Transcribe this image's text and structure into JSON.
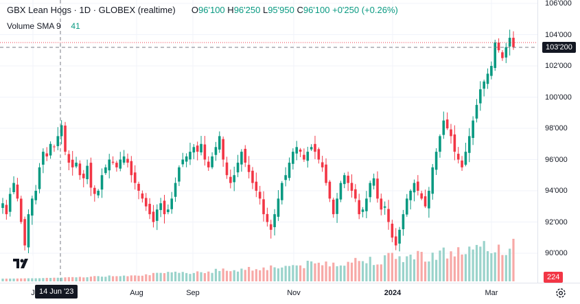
{
  "legend": {
    "symbol": "GBX Lean Hogs · 1D · GLOBEX (realtime)",
    "ohlc": [
      {
        "key": "O",
        "value": "96'100"
      },
      {
        "key": "H",
        "value": "96'250"
      },
      {
        "key": "L",
        "value": "95'950"
      },
      {
        "key": "C",
        "value": "96'100"
      }
    ],
    "change": "+0'250 (+0.26%)",
    "volume_label": "Volume SMA 9",
    "volume_value": "41"
  },
  "colors": {
    "up": "#089981",
    "down": "#f23645",
    "up_vol": "#9ad3cb",
    "down_vol": "#f7a9a7",
    "crosshair": "#787b86",
    "grid": "#f0f3fa"
  },
  "price_scale": {
    "ticks": [
      "106'000",
      "104'000",
      "102'000",
      "100'000",
      "98'000",
      "96'000",
      "94'000",
      "92'000",
      "90'000"
    ],
    "crosshair_price": "103'200",
    "volume_badge": "224"
  },
  "time_scale": {
    "ticks": [
      {
        "label": "J",
        "bold": false
      },
      {
        "label": "Aug",
        "bold": false
      },
      {
        "label": "Sep",
        "bold": false
      },
      {
        "label": "Nov",
        "bold": false
      },
      {
        "label": "2024",
        "bold": true
      },
      {
        "label": "Mar",
        "bold": false
      }
    ],
    "crosshair_date": "14 Jun '23"
  },
  "icons": {
    "logo": "tradingview-logo-icon",
    "settings": "gear-icon"
  },
  "chart_data": {
    "type": "candlestick",
    "price_range": [
      89,
      106.5
    ],
    "closes": [
      93.2,
      92.5,
      93.8,
      94.5,
      93.5,
      92.0,
      90.5,
      92.5,
      93.5,
      94.0,
      95.5,
      96.5,
      96.2,
      97.0,
      96.8,
      97.5,
      98.2,
      96.5,
      95.8,
      95.5,
      95.8,
      95.0,
      94.8,
      95.6,
      94.2,
      93.8,
      94.0,
      95.0,
      95.5,
      96.0,
      95.8,
      95.5,
      96.0,
      96.2,
      95.8,
      95.0,
      94.5,
      94.0,
      93.5,
      93.0,
      92.5,
      92.0,
      92.8,
      93.2,
      92.5,
      92.8,
      93.5,
      94.5,
      95.5,
      96.0,
      96.2,
      96.5,
      96.8,
      96.5,
      97.0,
      96.0,
      95.5,
      96.2,
      96.8,
      97.5,
      96.0,
      95.0,
      94.5,
      95.0,
      95.8,
      96.5,
      95.8,
      95.2,
      94.5,
      94.0,
      93.5,
      92.5,
      92.0,
      91.5,
      92.5,
      93.5,
      94.5,
      95.0,
      95.8,
      96.5,
      96.8,
      96.5,
      96.0,
      96.5,
      96.8,
      96.5,
      96.0,
      95.5,
      94.5,
      93.5,
      92.5,
      93.5,
      94.5,
      95.0,
      94.5,
      94.0,
      93.5,
      92.5,
      92.8,
      93.5,
      94.5,
      94.8,
      93.5,
      92.8,
      93.0,
      92.0,
      91.0,
      90.5,
      91.5,
      92.5,
      93.5,
      94.0,
      94.5,
      94.0,
      93.5,
      93.0,
      94.0,
      95.5,
      96.5,
      97.5,
      98.5,
      98.0,
      97.5,
      96.5,
      96.0,
      95.5,
      96.5,
      97.5,
      98.5,
      99.5,
      100.5,
      101.0,
      101.5,
      102.0,
      103.5,
      103.0,
      102.5,
      103.2,
      103.8,
      103.2
    ],
    "volume_bars": "relative heights only (axis not labeled)"
  }
}
